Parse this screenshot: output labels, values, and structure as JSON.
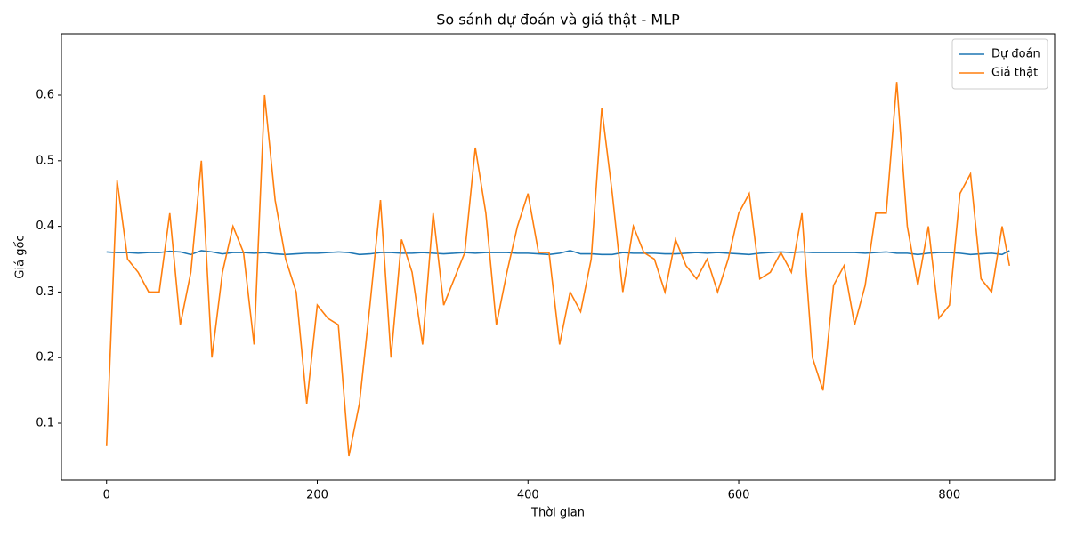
{
  "chart_data": {
    "type": "line",
    "title": "So sánh dự đoán và giá thật - MLP",
    "x_label": "Thời gian",
    "y_label": "Giá gốc",
    "x": [
      0,
      10,
      20,
      30,
      40,
      50,
      60,
      70,
      80,
      90,
      100,
      110,
      120,
      130,
      140,
      150,
      160,
      170,
      180,
      190,
      200,
      210,
      220,
      230,
      240,
      250,
      260,
      270,
      280,
      290,
      300,
      310,
      320,
      330,
      340,
      350,
      360,
      370,
      380,
      390,
      400,
      410,
      420,
      430,
      440,
      450,
      460,
      470,
      480,
      490,
      500,
      510,
      520,
      530,
      540,
      550,
      560,
      570,
      580,
      590,
      600,
      610,
      620,
      630,
      640,
      650,
      660,
      670,
      680,
      690,
      700,
      710,
      720,
      730,
      740,
      750,
      760,
      770,
      780,
      790,
      800,
      810,
      820,
      830,
      840,
      850,
      857
    ],
    "series": [
      {
        "name": "Dự đoán",
        "color": "#1f77b4",
        "values": [
          0.361,
          0.36,
          0.36,
          0.359,
          0.36,
          0.36,
          0.362,
          0.361,
          0.357,
          0.363,
          0.361,
          0.358,
          0.36,
          0.36,
          0.359,
          0.36,
          0.358,
          0.357,
          0.358,
          0.359,
          0.359,
          0.36,
          0.361,
          0.36,
          0.357,
          0.358,
          0.36,
          0.36,
          0.359,
          0.359,
          0.36,
          0.359,
          0.358,
          0.359,
          0.36,
          0.359,
          0.36,
          0.36,
          0.36,
          0.359,
          0.359,
          0.358,
          0.357,
          0.359,
          0.363,
          0.358,
          0.358,
          0.357,
          0.357,
          0.36,
          0.359,
          0.359,
          0.359,
          0.358,
          0.358,
          0.359,
          0.36,
          0.359,
          0.36,
          0.359,
          0.358,
          0.357,
          0.359,
          0.36,
          0.361,
          0.36,
          0.361,
          0.36,
          0.36,
          0.36,
          0.36,
          0.36,
          0.359,
          0.36,
          0.361,
          0.359,
          0.359,
          0.357,
          0.359,
          0.36,
          0.36,
          0.359,
          0.357,
          0.358,
          0.359,
          0.357,
          0.363
        ]
      },
      {
        "name": "Giá thật",
        "color": "#ff7f0e",
        "values": [
          0.065,
          0.47,
          0.35,
          0.33,
          0.3,
          0.3,
          0.42,
          0.25,
          0.33,
          0.5,
          0.2,
          0.33,
          0.4,
          0.36,
          0.22,
          0.6,
          0.44,
          0.35,
          0.3,
          0.13,
          0.28,
          0.26,
          0.25,
          0.05,
          0.13,
          0.28,
          0.44,
          0.2,
          0.38,
          0.33,
          0.22,
          0.42,
          0.28,
          0.32,
          0.36,
          0.52,
          0.42,
          0.25,
          0.33,
          0.4,
          0.45,
          0.36,
          0.36,
          0.22,
          0.3,
          0.27,
          0.35,
          0.58,
          0.45,
          0.3,
          0.4,
          0.36,
          0.35,
          0.3,
          0.38,
          0.34,
          0.32,
          0.35,
          0.3,
          0.35,
          0.42,
          0.45,
          0.32,
          0.33,
          0.36,
          0.33,
          0.42,
          0.2,
          0.15,
          0.31,
          0.34,
          0.25,
          0.31,
          0.42,
          0.42,
          0.62,
          0.4,
          0.31,
          0.4,
          0.26,
          0.28,
          0.45,
          0.48,
          0.32,
          0.3,
          0.4,
          0.34
        ]
      }
    ],
    "xlim": [
      -42.85,
      899.85
    ],
    "xticks": [
      0,
      200,
      400,
      600,
      800
    ],
    "ylim": [
      0.0133,
      0.6935
    ],
    "yticks": [
      0.1,
      0.2,
      0.3,
      0.4,
      0.5,
      0.6
    ],
    "legend": "upper right",
    "grid": false
  }
}
